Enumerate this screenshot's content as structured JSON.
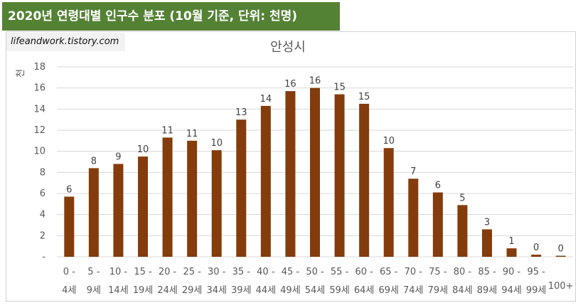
{
  "banner": {
    "title": "2020년 연령대별 인구수 분포 (10월 기준, 단위: 천명)"
  },
  "site_label": "lifeandwork.tistory.com",
  "chart_data": {
    "type": "bar",
    "title": "안성시",
    "ylabel": "천",
    "ylim": [
      0,
      18
    ],
    "yticks": [
      0,
      2,
      4,
      6,
      8,
      10,
      12,
      14,
      16,
      18
    ],
    "ytick_labels": [
      "-",
      "2",
      "4",
      "6",
      "8",
      "10",
      "12",
      "14",
      "16",
      "18"
    ],
    "grid": true,
    "categories": [
      [
        "0 -",
        "4세"
      ],
      [
        "5 -",
        "9세"
      ],
      [
        "10 -",
        "14세"
      ],
      [
        "15 -",
        "19세"
      ],
      [
        "20 -",
        "24세"
      ],
      [
        "25 -",
        "29세"
      ],
      [
        "30 -",
        "34세"
      ],
      [
        "35 -",
        "39세"
      ],
      [
        "40 -",
        "44세"
      ],
      [
        "45 -",
        "49세"
      ],
      [
        "50 -",
        "54세"
      ],
      [
        "55 -",
        "59세"
      ],
      [
        "60 -",
        "64세"
      ],
      [
        "65 -",
        "69세"
      ],
      [
        "70 -",
        "74세"
      ],
      [
        "75 -",
        "79세"
      ],
      [
        "80 -",
        "84세"
      ],
      [
        "85 -",
        "89세"
      ],
      [
        "90 -",
        "94세"
      ],
      [
        "95 -",
        "99세"
      ],
      [
        "",
        "100+"
      ]
    ],
    "values": [
      5.7,
      8.4,
      8.8,
      9.5,
      11.3,
      11.0,
      10.1,
      13.0,
      14.3,
      15.7,
      16.0,
      15.4,
      14.5,
      10.3,
      7.4,
      6.1,
      4.9,
      2.6,
      0.8,
      0.2,
      0.1
    ],
    "data_labels": [
      "6",
      "8",
      "9",
      "10",
      "11",
      "11",
      "10",
      "13",
      "14",
      "16",
      "16",
      "15",
      "15",
      "10",
      "7",
      "6",
      "5",
      "3",
      "1",
      "0",
      "0"
    ],
    "bar_color": "#843C0C",
    "grid_color": "#d9d9d9"
  }
}
